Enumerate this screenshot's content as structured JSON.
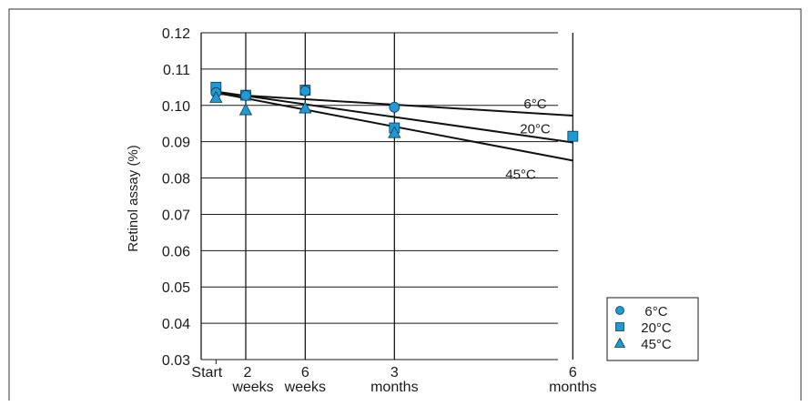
{
  "chart_data": {
    "type": "scatter",
    "ylabel": "Retinol assay (%)",
    "xlabel": "",
    "ylim": [
      0.03,
      0.12
    ],
    "yticks": [
      "0.03",
      "0.04",
      "0.05",
      "0.06",
      "0.07",
      "0.08",
      "0.09",
      "0.10",
      "0.11",
      "0.12"
    ],
    "x_unit": "weeks",
    "xlim": [
      -1,
      26
    ],
    "xticks": [
      {
        "x": 0,
        "label": [
          "Start"
        ]
      },
      {
        "x": 2,
        "label": [
          "2",
          "weeks"
        ]
      },
      {
        "x": 6,
        "label": [
          "6",
          "weeks"
        ]
      },
      {
        "x": 12,
        "label": [
          "3",
          "months"
        ]
      },
      {
        "x": 24,
        "label": [
          "6",
          "months"
        ]
      }
    ],
    "grid": true,
    "legend_position": "bottom-right",
    "series": [
      {
        "name": "6°C",
        "marker": "circle",
        "color": "#1f9ad6",
        "points": [
          [
            0,
            0.1035
          ],
          [
            2,
            0.1027
          ],
          [
            6,
            0.104
          ],
          [
            12,
            0.0995
          ]
        ],
        "trend": [
          [
            0,
            0.1032
          ],
          [
            24,
            0.0972
          ]
        ],
        "trend_label": "6°C"
      },
      {
        "name": "20°C",
        "marker": "square",
        "color": "#1f9ad6",
        "points": [
          [
            0,
            0.105
          ],
          [
            2,
            0.1028
          ],
          [
            6,
            0.1042
          ],
          [
            12,
            0.0938
          ],
          [
            24,
            0.0915
          ]
        ],
        "trend": [
          [
            0,
            0.1038
          ],
          [
            24,
            0.0898
          ]
        ],
        "trend_label": "20°C"
      },
      {
        "name": "45°C",
        "marker": "triangle",
        "color": "#1f9ad6",
        "points": [
          [
            0,
            0.1022
          ],
          [
            2,
            0.0988
          ],
          [
            6,
            0.0993
          ],
          [
            12,
            0.0925
          ]
        ],
        "trend": [
          [
            0,
            0.1035
          ],
          [
            24,
            0.0848
          ]
        ],
        "trend_label": "45°C"
      }
    ]
  }
}
